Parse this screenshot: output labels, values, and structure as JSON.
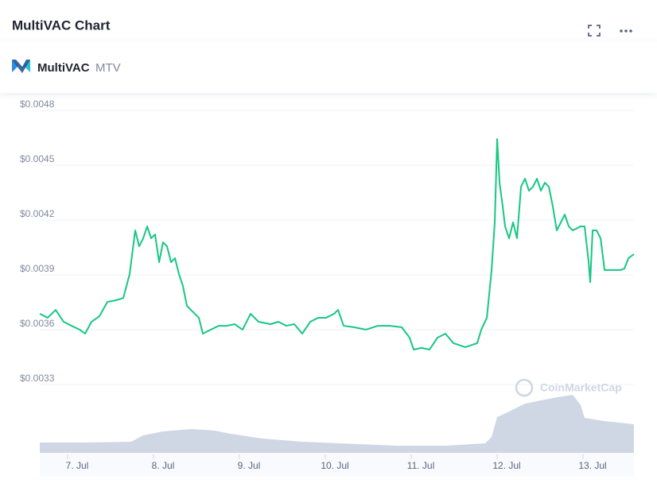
{
  "chart_data": {
    "type": "line",
    "title": "MultiVAC Chart",
    "coin_name": "MultiVAC",
    "coin_symbol": "MTV",
    "watermark": "CoinMarketCap",
    "color": "#16c784",
    "x": [
      6.565,
      6.657,
      6.75,
      6.843,
      6.935,
      7.028,
      7.093,
      7.167,
      7.259,
      7.352,
      7.444,
      7.537,
      7.611,
      7.676,
      7.722,
      7.769,
      7.815,
      7.861,
      7.907,
      7.954,
      8.0,
      8.046,
      8.093,
      8.139,
      8.185,
      8.231,
      8.278,
      8.324,
      8.417,
      8.463,
      8.556,
      8.648,
      8.741,
      8.833,
      8.926,
      9.019,
      9.111,
      9.25,
      9.343,
      9.435,
      9.528,
      9.62,
      9.713,
      9.806,
      9.898,
      9.991,
      10.037,
      10.102,
      10.222,
      10.361,
      10.5,
      10.639,
      10.778,
      10.87,
      10.917,
      11.009,
      11.102,
      11.194,
      11.287,
      11.38,
      11.519,
      11.657,
      11.704,
      11.769,
      11.824,
      11.861,
      11.889,
      11.917,
      11.954,
      11.981,
      12.028,
      12.074,
      12.12,
      12.167,
      12.213,
      12.259,
      12.306,
      12.352,
      12.398,
      12.444,
      12.491,
      12.537,
      12.583,
      12.63,
      12.676,
      12.722,
      12.769,
      12.861,
      12.907,
      12.954,
      12.972,
      13.0,
      13.046,
      13.093,
      13.139,
      13.231,
      13.324,
      13.37,
      13.417,
      13.481
    ],
    "values": [
      0.003657,
      0.003635,
      0.003678,
      0.003613,
      0.003591,
      0.00357,
      0.003548,
      0.003613,
      0.003643,
      0.003722,
      0.00373,
      0.003743,
      0.003874,
      0.004113,
      0.004026,
      0.00407,
      0.004135,
      0.00407,
      0.004091,
      0.003939,
      0.004048,
      0.004026,
      0.003939,
      0.003961,
      0.003874,
      0.003809,
      0.0037,
      0.003678,
      0.003635,
      0.003548,
      0.00357,
      0.003591,
      0.003591,
      0.0036,
      0.00357,
      0.003657,
      0.003613,
      0.0036,
      0.003613,
      0.003591,
      0.0036,
      0.003548,
      0.003613,
      0.003635,
      0.003635,
      0.003657,
      0.003678,
      0.003591,
      0.003583,
      0.00357,
      0.003591,
      0.003591,
      0.003583,
      0.003526,
      0.003461,
      0.00347,
      0.003461,
      0.003526,
      0.003548,
      0.003496,
      0.003474,
      0.003496,
      0.00357,
      0.003635,
      0.003896,
      0.004157,
      0.004613,
      0.004374,
      0.004243,
      0.004135,
      0.00407,
      0.004157,
      0.00407,
      0.004352,
      0.004396,
      0.00433,
      0.004352,
      0.004396,
      0.00433,
      0.004374,
      0.004352,
      0.004243,
      0.004113,
      0.004157,
      0.0042,
      0.004135,
      0.004113,
      0.004135,
      0.004135,
      0.003939,
      0.00383,
      0.004113,
      0.004113,
      0.00407,
      0.003896,
      0.003896,
      0.003896,
      0.003904,
      0.003961,
      0.003983
    ],
    "xlim": [
      6.565,
      13.481
    ],
    "xticks": [
      {
        "value": 7,
        "label": "7. Jul"
      },
      {
        "value": 8,
        "label": "8. Jul"
      },
      {
        "value": 9,
        "label": "9. Jul"
      },
      {
        "value": 10,
        "label": "10. Jul"
      },
      {
        "value": 11,
        "label": "11. Jul"
      },
      {
        "value": 12,
        "label": "12. Jul"
      },
      {
        "value": 13,
        "label": "13. Jul"
      }
    ],
    "ylim": [
      0.0033,
      0.0048
    ],
    "yticks": [
      {
        "value": 0.0048,
        "label": "$0.0048"
      },
      {
        "value": 0.0045,
        "label": "$0.0045"
      },
      {
        "value": 0.0042,
        "label": "$0.0042"
      },
      {
        "value": 0.0039,
        "label": "$0.0039"
      },
      {
        "value": 0.0036,
        "label": "$0.0036"
      },
      {
        "value": 0.0033,
        "label": "$0.0033"
      }
    ],
    "grid": true,
    "volume": {
      "color": "#cfd6e4",
      "x": [
        6.565,
        7.028,
        7.63,
        7.769,
        8.0,
        8.324,
        8.602,
        8.787,
        9.157,
        9.62,
        10.269,
        10.731,
        11.287,
        11.75,
        11.824,
        11.889,
        12.028,
        12.213,
        12.583,
        12.769,
        12.861,
        12.907,
        13.139,
        13.481
      ],
      "values": [
        13,
        13,
        14,
        22,
        27,
        30,
        28,
        24,
        18,
        14,
        11,
        9,
        9,
        12,
        20,
        45,
        52,
        62,
        70,
        73,
        60,
        44,
        40,
        36
      ],
      "y2lim": [
        0,
        100
      ]
    }
  }
}
